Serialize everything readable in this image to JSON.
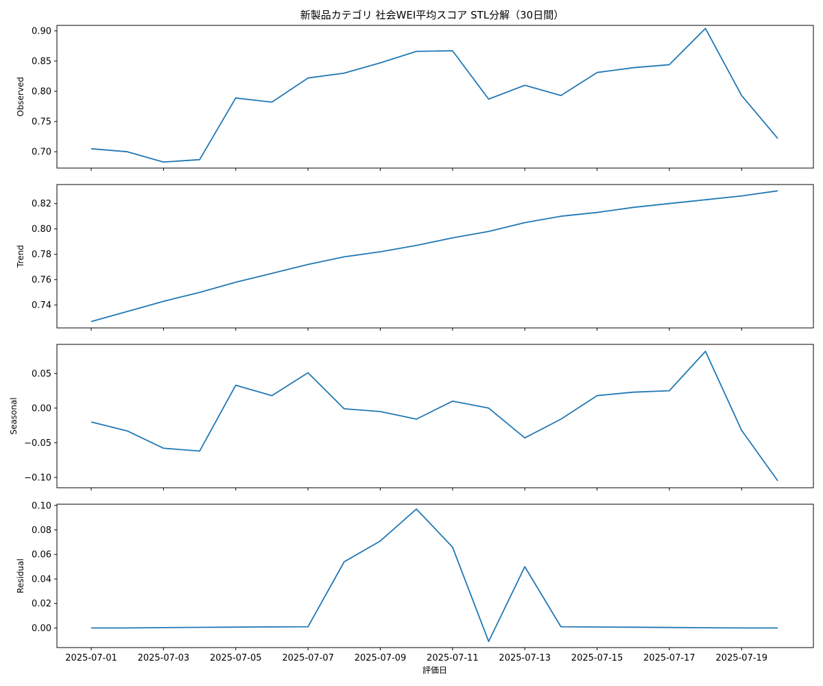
{
  "chart_data": {
    "type": "line",
    "title": "新製品カテゴリ 社会WEI平均スコア STL分解（30日間）",
    "xlabel": "評価日",
    "x": [
      "2025-07-01",
      "2025-07-02",
      "2025-07-03",
      "2025-07-04",
      "2025-07-05",
      "2025-07-06",
      "2025-07-07",
      "2025-07-08",
      "2025-07-09",
      "2025-07-10",
      "2025-07-11",
      "2025-07-12",
      "2025-07-13",
      "2025-07-14",
      "2025-07-15",
      "2025-07-16",
      "2025-07-17",
      "2025-07-18",
      "2025-07-19",
      "2025-07-20"
    ],
    "x_ticks": [
      "2025-07-01",
      "2025-07-03",
      "2025-07-05",
      "2025-07-07",
      "2025-07-09",
      "2025-07-11",
      "2025-07-13",
      "2025-07-15",
      "2025-07-17",
      "2025-07-19"
    ],
    "color": "#1f77b4",
    "grid": false,
    "panels": [
      {
        "ylabel": "Observed",
        "ylim": [
          0.673,
          0.909
        ],
        "yticks": [
          0.7,
          0.75,
          0.8,
          0.85,
          0.9
        ],
        "ytick_labels": [
          "0.70",
          "0.75",
          "0.80",
          "0.85",
          "0.90"
        ],
        "values": [
          0.705,
          0.7,
          0.683,
          0.687,
          0.789,
          0.782,
          0.822,
          0.83,
          0.847,
          0.866,
          0.867,
          0.787,
          0.81,
          0.793,
          0.831,
          0.839,
          0.844,
          0.904,
          0.793,
          0.722
        ]
      },
      {
        "ylabel": "Trend",
        "ylim": [
          0.722,
          0.835
        ],
        "yticks": [
          0.74,
          0.76,
          0.78,
          0.8,
          0.82
        ],
        "ytick_labels": [
          "0.74",
          "0.76",
          "0.78",
          "0.80",
          "0.82"
        ],
        "values": [
          0.727,
          0.735,
          0.743,
          0.75,
          0.758,
          0.765,
          0.772,
          0.778,
          0.782,
          0.787,
          0.793,
          0.798,
          0.805,
          0.81,
          0.813,
          0.817,
          0.82,
          0.823,
          0.826,
          0.83
        ]
      },
      {
        "ylabel": "Seasonal",
        "ylim": [
          -0.115,
          0.092
        ],
        "yticks": [
          -0.1,
          -0.05,
          0.0,
          0.05
        ],
        "ytick_labels": [
          "−0.10",
          "−0.05",
          "0.00",
          "0.05"
        ],
        "values": [
          -0.02,
          -0.033,
          -0.058,
          -0.062,
          0.033,
          0.018,
          0.051,
          -0.001,
          -0.005,
          -0.016,
          0.01,
          0.0,
          -0.043,
          -0.016,
          0.018,
          0.023,
          0.025,
          0.082,
          -0.032,
          -0.105
        ]
      },
      {
        "ylabel": "Residual",
        "ylim": [
          -0.016,
          0.101
        ],
        "yticks": [
          0.0,
          0.02,
          0.04,
          0.06,
          0.08,
          0.1
        ],
        "ytick_labels": [
          "0.00",
          "0.02",
          "0.04",
          "0.06",
          "0.08",
          "0.10"
        ],
        "values": [
          0.0,
          0.0,
          0.0003,
          0.0005,
          0.0007,
          0.0009,
          0.001,
          0.054,
          0.071,
          0.097,
          0.066,
          -0.011,
          0.05,
          0.001,
          0.0008,
          0.0006,
          0.0004,
          0.0002,
          0.0,
          0.0
        ]
      }
    ]
  }
}
